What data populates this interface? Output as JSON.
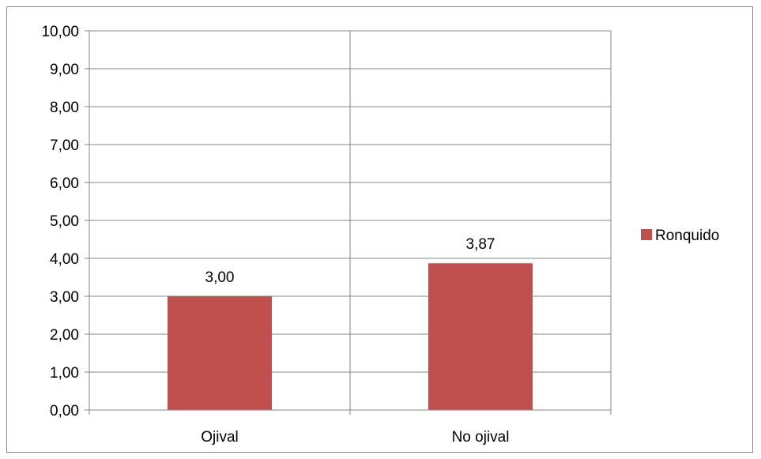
{
  "chart_data": {
    "type": "bar",
    "categories": [
      "Ojival",
      "No ojival"
    ],
    "series": [
      {
        "name": "Ronquido",
        "values": [
          3.0,
          3.87
        ],
        "color": "#C0504D"
      }
    ],
    "data_labels": [
      "3,00",
      "3,87"
    ],
    "y_tick_labels": [
      "0,00",
      "1,00",
      "2,00",
      "3,00",
      "4,00",
      "5,00",
      "6,00",
      "7,00",
      "8,00",
      "9,00",
      "10,00"
    ],
    "ylim": [
      0,
      10
    ],
    "y_step": 1,
    "grid": true,
    "vertical_gridlines": true,
    "legend_position": "right",
    "title": "",
    "xlabel": "",
    "ylabel": ""
  }
}
